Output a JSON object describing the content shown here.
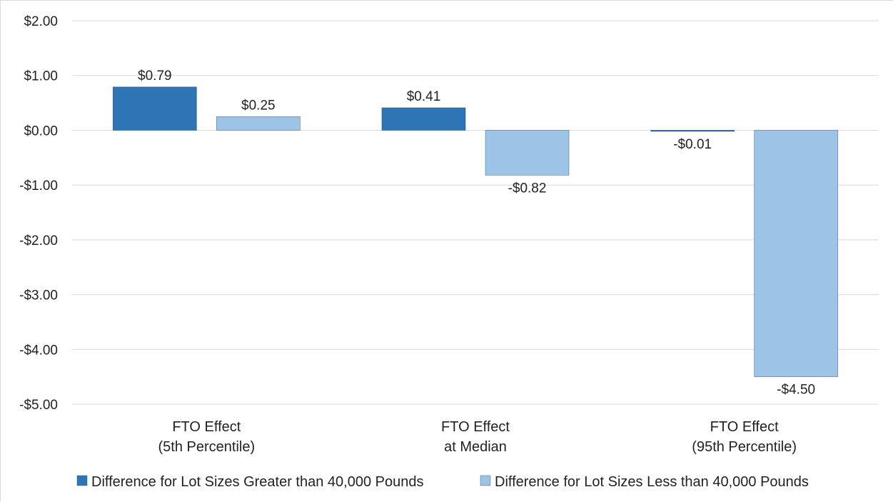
{
  "chart_data": {
    "type": "bar",
    "title": "",
    "xlabel": "",
    "ylabel": "",
    "ylim": [
      -5,
      2
    ],
    "yticks": [
      2,
      1,
      0,
      -1,
      -2,
      -3,
      -4,
      -5
    ],
    "ytick_labels": [
      "$2.00",
      "$1.00",
      "$0.00",
      "-$1.00",
      "-$2.00",
      "-$3.00",
      "-$4.00",
      "-$5.00"
    ],
    "grid": true,
    "legend_position": "bottom",
    "categories": [
      [
        "FTO Effect",
        "(5th Percentile)"
      ],
      [
        "FTO Effect",
        "at Median"
      ],
      [
        "FTO Effect",
        "(95th Percentile)"
      ]
    ],
    "series": [
      {
        "name": "Difference for Lot Sizes Greater than 40,000 Pounds",
        "color": "#2e75b6",
        "values": [
          0.79,
          0.41,
          -0.01
        ],
        "labels": [
          "$0.79",
          "$0.41",
          "-$0.01"
        ]
      },
      {
        "name": "Difference for Lot Sizes Less than 40,000 Pounds",
        "color": "#9dc3e6",
        "values": [
          0.25,
          -0.82,
          -4.5
        ],
        "labels": [
          "$0.25",
          "-$0.82",
          "-$4.50"
        ]
      }
    ]
  }
}
